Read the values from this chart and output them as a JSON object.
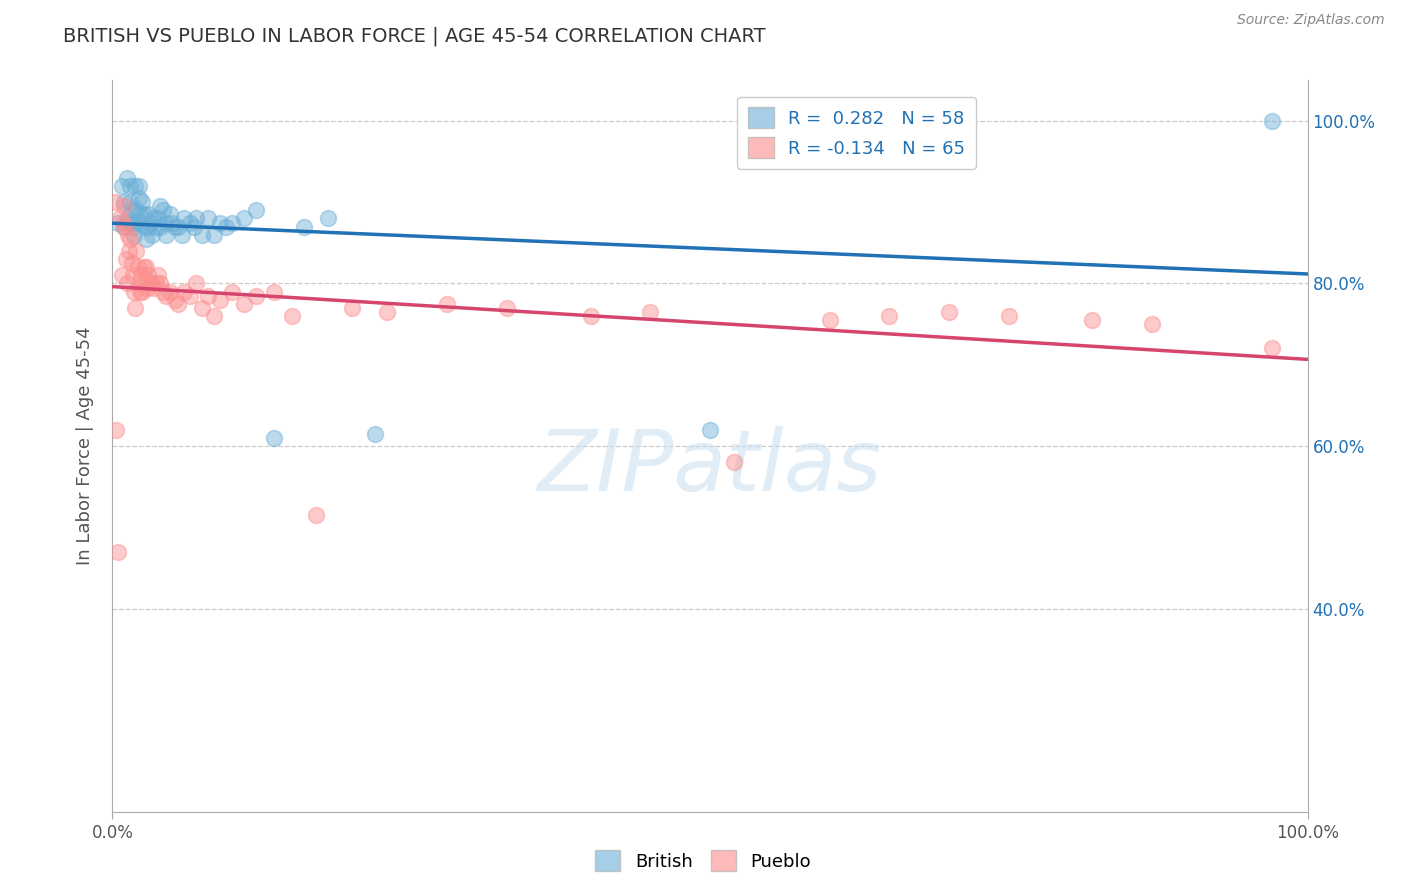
{
  "title": "BRITISH VS PUEBLO IN LABOR FORCE | AGE 45-54 CORRELATION CHART",
  "source": "Source: ZipAtlas.com",
  "ylabel": "In Labor Force | Age 45-54",
  "xlim": [
    0,
    1
  ],
  "ylim": [
    0.15,
    1.05
  ],
  "right_yticks": [
    0.4,
    0.6,
    0.8,
    1.0
  ],
  "right_yticklabels": [
    "40.0%",
    "60.0%",
    "80.0%",
    "100.0%"
  ],
  "grid_yticks": [
    0.4,
    0.6,
    0.8,
    1.0
  ],
  "british_R": 0.282,
  "british_N": 58,
  "pueblo_R": -0.134,
  "pueblo_N": 65,
  "british_color": "#6baed6",
  "pueblo_color": "#fc8d8d",
  "british_line_color": "#2171b5",
  "pueblo_line_color": "#d6456e",
  "watermark": "ZIPatlas",
  "background_color": "#ffffff",
  "grid_color": "#cccccc",
  "british_x": [
    0.005,
    0.008,
    0.01,
    0.01,
    0.012,
    0.013,
    0.015,
    0.015,
    0.015,
    0.016,
    0.017,
    0.018,
    0.019,
    0.02,
    0.02,
    0.022,
    0.022,
    0.023,
    0.024,
    0.025,
    0.026,
    0.027,
    0.028,
    0.03,
    0.03,
    0.032,
    0.033,
    0.035,
    0.036,
    0.038,
    0.04,
    0.04,
    0.042,
    0.045,
    0.045,
    0.048,
    0.05,
    0.052,
    0.055,
    0.058,
    0.06,
    0.065,
    0.068,
    0.07,
    0.075,
    0.08,
    0.085,
    0.09,
    0.095,
    0.1,
    0.11,
    0.12,
    0.135,
    0.16,
    0.18,
    0.22,
    0.5,
    0.97
  ],
  "british_y": [
    0.875,
    0.92,
    0.87,
    0.9,
    0.93,
    0.88,
    0.92,
    0.9,
    0.875,
    0.89,
    0.87,
    0.86,
    0.92,
    0.89,
    0.875,
    0.92,
    0.905,
    0.885,
    0.875,
    0.9,
    0.885,
    0.87,
    0.855,
    0.885,
    0.87,
    0.875,
    0.86,
    0.88,
    0.87,
    0.88,
    0.895,
    0.87,
    0.89,
    0.875,
    0.86,
    0.885,
    0.875,
    0.87,
    0.87,
    0.86,
    0.88,
    0.875,
    0.87,
    0.88,
    0.86,
    0.88,
    0.86,
    0.875,
    0.87,
    0.875,
    0.88,
    0.89,
    0.61,
    0.87,
    0.88,
    0.615,
    0.62,
    1.0
  ],
  "pueblo_x": [
    0.002,
    0.003,
    0.005,
    0.006,
    0.008,
    0.009,
    0.01,
    0.01,
    0.011,
    0.012,
    0.013,
    0.014,
    0.015,
    0.016,
    0.017,
    0.018,
    0.019,
    0.02,
    0.021,
    0.022,
    0.023,
    0.024,
    0.025,
    0.026,
    0.027,
    0.028,
    0.029,
    0.03,
    0.032,
    0.034,
    0.036,
    0.038,
    0.04,
    0.042,
    0.045,
    0.048,
    0.052,
    0.055,
    0.06,
    0.065,
    0.07,
    0.075,
    0.08,
    0.085,
    0.09,
    0.1,
    0.11,
    0.12,
    0.135,
    0.15,
    0.17,
    0.2,
    0.23,
    0.28,
    0.33,
    0.4,
    0.45,
    0.52,
    0.6,
    0.65,
    0.7,
    0.75,
    0.82,
    0.87,
    0.97
  ],
  "pueblo_y": [
    0.9,
    0.62,
    0.47,
    0.88,
    0.81,
    0.875,
    0.895,
    0.87,
    0.83,
    0.8,
    0.86,
    0.84,
    0.855,
    0.825,
    0.81,
    0.79,
    0.77,
    0.84,
    0.82,
    0.8,
    0.79,
    0.81,
    0.79,
    0.82,
    0.8,
    0.82,
    0.795,
    0.81,
    0.8,
    0.795,
    0.8,
    0.81,
    0.8,
    0.79,
    0.785,
    0.79,
    0.78,
    0.775,
    0.79,
    0.785,
    0.8,
    0.77,
    0.785,
    0.76,
    0.78,
    0.79,
    0.775,
    0.785,
    0.79,
    0.76,
    0.515,
    0.77,
    0.765,
    0.775,
    0.77,
    0.76,
    0.765,
    0.58,
    0.755,
    0.76,
    0.765,
    0.76,
    0.755,
    0.75,
    0.72
  ]
}
